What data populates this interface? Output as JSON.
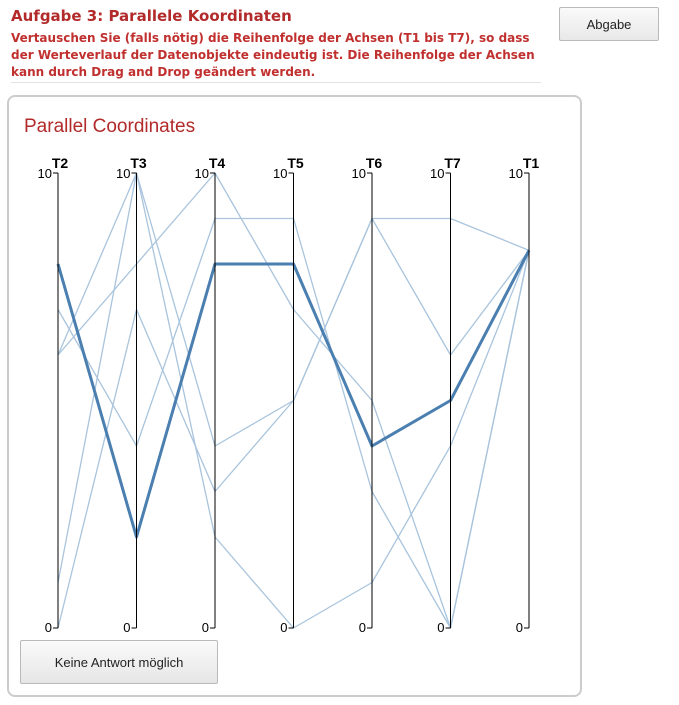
{
  "task": {
    "title": "Aufgabe 3: Parallele Koordinaten",
    "description": "Vertauschen Sie (falls nötig) die Reihenfolge der Achsen (T1 bis T7), so dass der Werteverlauf der Datenobjekte eindeutig ist. Die Reihenfolge der Achsen kann durch Drag and Drop geändert werden."
  },
  "submit_label": "Abgabe",
  "no_answer_label": "Keine Antwort möglich",
  "colors": {
    "title": "#b22a2a",
    "line": "#a9c4dc",
    "highlight_line": "#4a7fb0",
    "axis": "#000000"
  },
  "chart_data": {
    "type": "parallel_coordinates",
    "title": "Parallel Coordinates",
    "axes": [
      "T2",
      "T3",
      "T4",
      "T5",
      "T6",
      "T7",
      "T1"
    ],
    "range": [
      0,
      10
    ],
    "tick_labels": {
      "min": "0",
      "max": "10"
    },
    "draggable_axes": true,
    "highlighted_series": 0,
    "series": [
      {
        "values": [
          8,
          2,
          8,
          8,
          4,
          5,
          8.3
        ]
      },
      {
        "values": [
          7,
          4,
          9,
          9,
          3,
          0,
          8.3
        ]
      },
      {
        "values": [
          6,
          8,
          10,
          7,
          5,
          0,
          8.3
        ]
      },
      {
        "values": [
          1,
          10,
          2,
          0,
          1,
          4,
          8.3
        ]
      },
      {
        "values": [
          0,
          7,
          3,
          5,
          9,
          6,
          8.3
        ]
      },
      {
        "values": [
          6,
          10,
          4,
          5,
          9,
          9,
          8.3
        ]
      }
    ]
  }
}
